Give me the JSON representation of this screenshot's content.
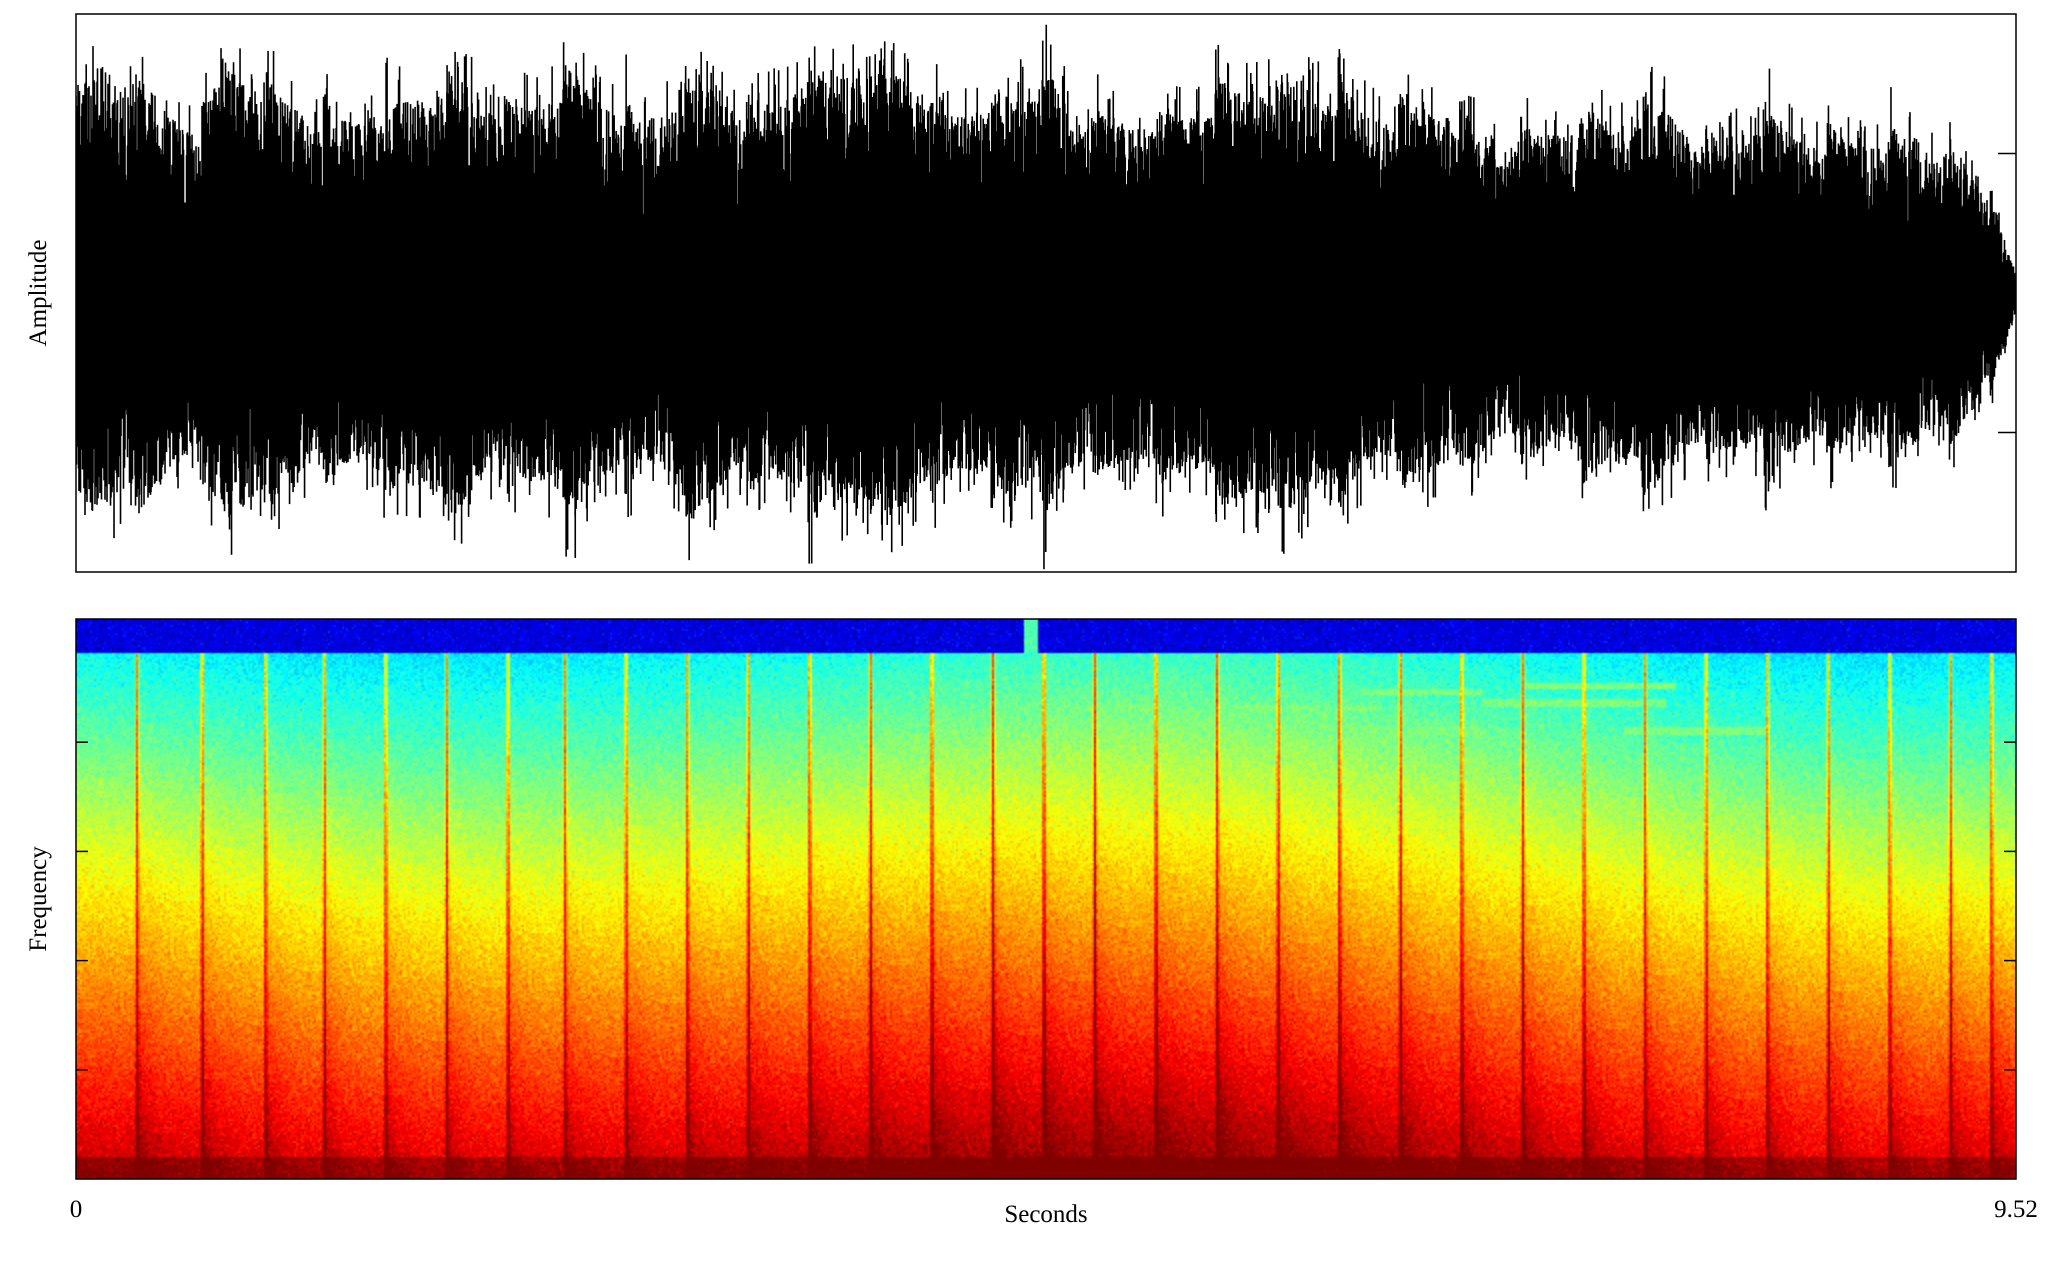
{
  "chart_data": [
    {
      "type": "line",
      "panel": "waveform",
      "title": "",
      "xlabel": "",
      "ylabel": "Amplitude",
      "xlim": [
        0,
        9.52
      ],
      "ylim": [
        -1,
        1
      ],
      "y_ticks": [
        -0.5,
        0.5
      ],
      "x_tick_labels": [],
      "y_tick_labels": [],
      "grid": false,
      "legend": "none",
      "line_color": "#000000",
      "series": [
        {
          "x": [
            0,
            0.1,
            0.6,
            0.75,
            1.2,
            1.5,
            1.85,
            2.1,
            2.45,
            2.8,
            3.05,
            3.3,
            3.65,
            4.0,
            4.3,
            4.75,
            5.0,
            5.5,
            5.7,
            6.0,
            6.45,
            6.6,
            7.0,
            7.35,
            7.8,
            8.0,
            8.3,
            8.6,
            9.0,
            9.3,
            9.52
          ],
          "envelope": [
            0.72,
            0.8,
            0.55,
            0.78,
            0.58,
            0.6,
            0.74,
            0.6,
            0.72,
            0.56,
            0.74,
            0.6,
            0.75,
            0.78,
            0.6,
            0.72,
            0.56,
            0.62,
            0.7,
            0.72,
            0.58,
            0.64,
            0.5,
            0.56,
            0.62,
            0.5,
            0.58,
            0.5,
            0.52,
            0.4,
            0.04
          ],
          "peak_x": [
            0.05,
            0.72,
            1.82,
            2.45,
            3.0,
            3.6,
            3.95,
            4.75,
            5.8,
            6.55,
            7.2,
            8.3,
            9.0
          ],
          "peak_top": [
            0.82,
            0.84,
            0.72,
            0.68,
            0.72,
            0.7,
            0.76,
            0.74,
            0.6,
            0.58,
            0.52,
            0.6,
            0.52
          ],
          "peak_bottom": [
            -0.72,
            -0.74,
            -0.72,
            -0.95,
            -0.78,
            -0.72,
            -0.72,
            -0.99,
            -0.86,
            -0.62,
            -0.62,
            -0.6,
            -0.5
          ]
        }
      ]
    },
    {
      "type": "heatmap",
      "panel": "spectrogram",
      "title": "",
      "xlabel": "Seconds",
      "ylabel": "Frequency",
      "xlim": [
        0,
        9.52
      ],
      "ylim": [
        0,
        1
      ],
      "x_tick_labels": [
        "0",
        "9.52"
      ],
      "y_tick_labels": [],
      "y_ticks": [
        0.195,
        0.39,
        0.585,
        0.78
      ],
      "colormap": "jet",
      "grid": false,
      "legend": "none",
      "onsets_seconds": [
        0.3,
        0.62,
        0.93,
        1.22,
        1.52,
        1.82,
        2.12,
        2.4,
        2.7,
        3.0,
        3.3,
        3.6,
        3.9,
        4.2,
        4.5,
        4.75,
        5.0,
        5.3,
        5.6,
        5.9,
        6.2,
        6.5,
        6.8,
        7.1,
        7.4,
        7.7,
        8.0,
        8.3,
        8.6,
        8.9,
        9.2,
        9.4
      ],
      "tonal_lines": [
        {
          "x": [
            4.8,
            5.6
          ],
          "f": 0.78
        },
        {
          "x": [
            4.8,
            5.6
          ],
          "f": 0.74
        },
        {
          "x": [
            4.8,
            5.3
          ],
          "f": 0.84
        },
        {
          "x": [
            5.65,
            6.4
          ],
          "f": 0.84
        },
        {
          "x": [
            5.65,
            6.4
          ],
          "f": 0.78
        },
        {
          "x": [
            5.65,
            6.4
          ],
          "f": 0.74
        },
        {
          "x": [
            6.3,
            6.9
          ],
          "f": 0.8
        },
        {
          "x": [
            6.3,
            6.9
          ],
          "f": 0.87
        },
        {
          "x": [
            6.9,
            7.8
          ],
          "f": 0.85
        },
        {
          "x": [
            7.1,
            7.85
          ],
          "f": 0.88
        },
        {
          "x": [
            7.6,
            8.3
          ],
          "f": 0.8
        },
        {
          "x": [
            8.0,
            9.4
          ],
          "f": 0.69
        },
        {
          "x": [
            8.0,
            9.4
          ],
          "f": 0.43
        },
        {
          "x": [
            7.8,
            9.4
          ],
          "f": 0.28
        },
        {
          "x": [
            6.3,
            6.65
          ],
          "f": 0.53
        },
        {
          "x": [
            7.1,
            7.8
          ],
          "f": 0.53
        },
        {
          "x": [
            7.1,
            7.3
          ],
          "f": 0.63
        },
        {
          "x": [
            4.3,
            4.6
          ],
          "f": 0.3
        }
      ]
    }
  ]
}
